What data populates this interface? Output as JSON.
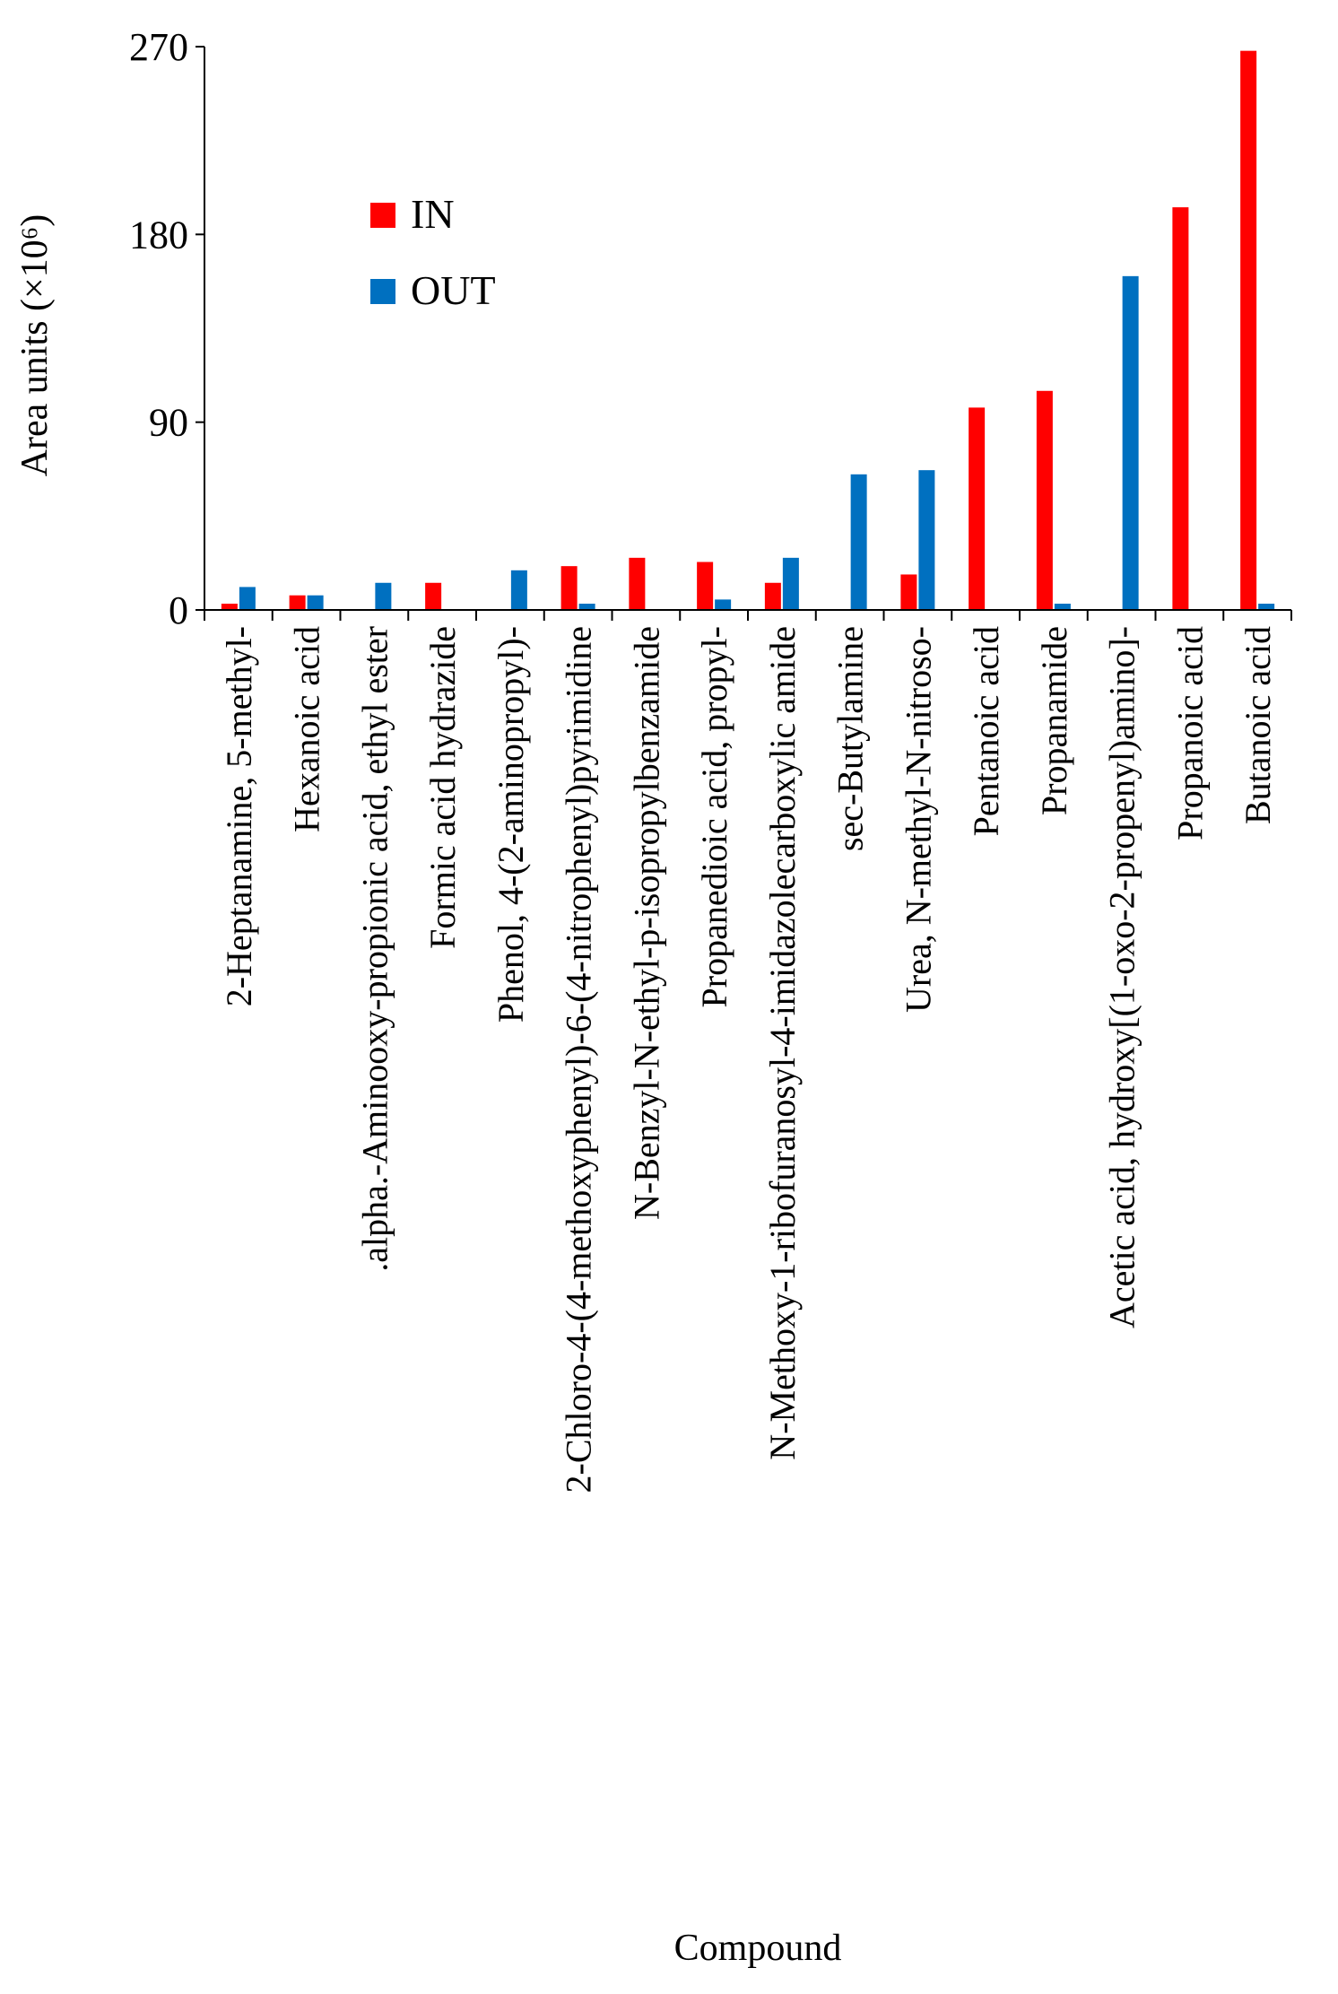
{
  "chart_data": {
    "type": "bar",
    "title": "",
    "xlabel": "Compound",
    "ylabel": "Area units (×10⁶)",
    "ylim": [
      0,
      270
    ],
    "yticks": [
      0,
      90,
      180,
      270
    ],
    "grid": false,
    "legend_position": "top-left",
    "categories": [
      "2-Heptanamine, 5-methyl-",
      "Hexanoic acid",
      ".alpha.-Aminooxy-propionic acid, ethyl ester",
      "Formic acid hydrazide",
      "Phenol, 4-(2-aminopropyl)-",
      "2-Chloro-4-(4-methoxyphenyl)-6-(4-nitrophenyl)pyrimidine",
      "N-Benzyl-N-ethyl-p-isopropylbenzamide",
      "Propanedioic acid, propyl-",
      "N-Methoxy-1-ribofuranosyl-4-imidazolecarboxylic amide",
      "sec-Butylamine",
      "Urea, N-methyl-N-nitroso-",
      "Pentanoic acid",
      "Propanamide",
      "Acetic acid, hydroxy[(1-oxo-2-propenyl)amino]-",
      "Propanoic acid",
      "Butanoic acid"
    ],
    "series": [
      {
        "name": "IN",
        "color": "#ff0000",
        "values": [
          3,
          7,
          0,
          13,
          0,
          21,
          25,
          23,
          13,
          0,
          17,
          97,
          105,
          0,
          193,
          268
        ]
      },
      {
        "name": "OUT",
        "color": "#0070c0",
        "values": [
          11,
          7,
          13,
          0,
          19,
          3,
          0,
          5,
          25,
          65,
          67,
          0,
          3,
          160,
          0,
          3
        ]
      }
    ]
  }
}
